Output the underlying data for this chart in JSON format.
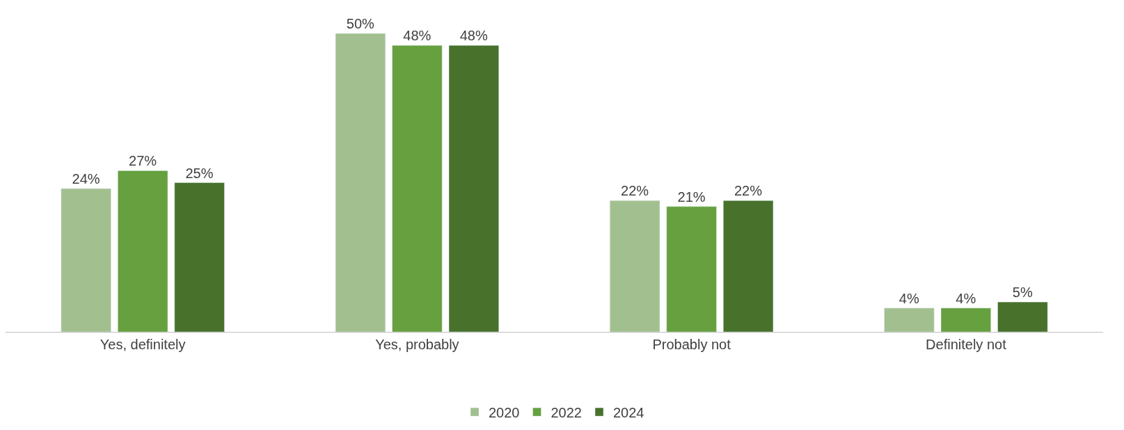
{
  "chart_data": {
    "type": "bar",
    "categories": [
      "Yes, definitely",
      "Yes, probably",
      "Probably not",
      "Definitely not"
    ],
    "series": [
      {
        "name": "2020",
        "color": "#a2c08f",
        "values": [
          24,
          50,
          22,
          4
        ],
        "value_labels": [
          "24%",
          "50%",
          "22%",
          "4%"
        ]
      },
      {
        "name": "2022",
        "color": "#66a03f",
        "values": [
          27,
          48,
          21,
          4
        ],
        "value_labels": [
          "27%",
          "48%",
          "21%",
          "4%"
        ]
      },
      {
        "name": "2024",
        "color": "#48722c",
        "values": [
          25,
          48,
          22,
          5
        ],
        "value_labels": [
          "25%",
          "48%",
          "22%",
          "5%"
        ]
      }
    ],
    "ylim": [
      0,
      50
    ],
    "legend": "bottom"
  }
}
